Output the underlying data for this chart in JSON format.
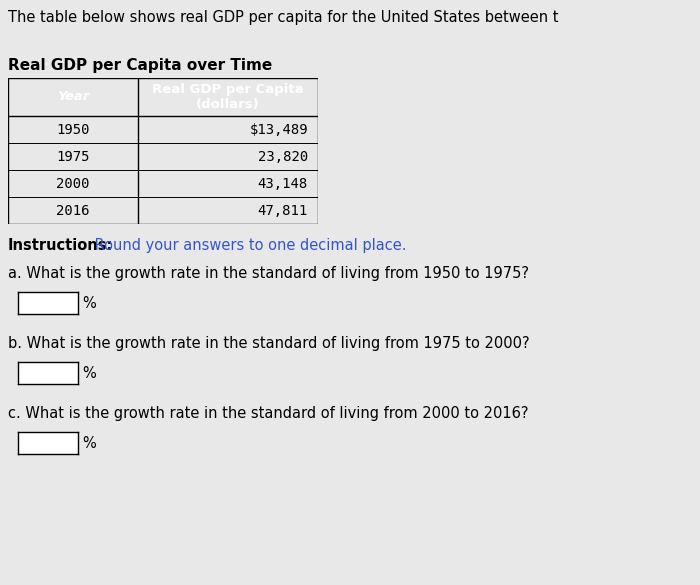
{
  "header_text": "The table below shows real GDP per capita for the United States between t",
  "table_title": "Real GDP per Capita over Time",
  "col1_header": "Year",
  "col2_header": "Real GDP per Capita\n(dollars)",
  "years": [
    "1950",
    "1975",
    "2000",
    "2016"
  ],
  "values": [
    "$13,489",
    "23,820",
    "43,148",
    "47,811"
  ],
  "instructions_bold": "Instructions:",
  "instructions_rest": " Round your answers to one decimal place.",
  "question_a": "a. What is the growth rate in the standard of living from 1950 to 1975?",
  "question_b": "b. What is the growth rate in the standard of living from 1975 to 2000?",
  "question_c": "c. What is the growth rate in the standard of living from 2000 to 2016?",
  "bg_color": "#e8e8e8",
  "table_header_bg": "#3355dd",
  "table_header_text": "#ffffff",
  "table_row1_bg": "#d0d0d0",
  "table_row2_bg": "#c0c0c0",
  "table_border_color": "#000000",
  "instructions_color": "#3355cc",
  "text_color": "#000000",
  "header_font_size": 10.5,
  "title_font_size": 11,
  "body_font_size": 10.5,
  "table_font_size": 10,
  "table_header_font_size": 9.5
}
